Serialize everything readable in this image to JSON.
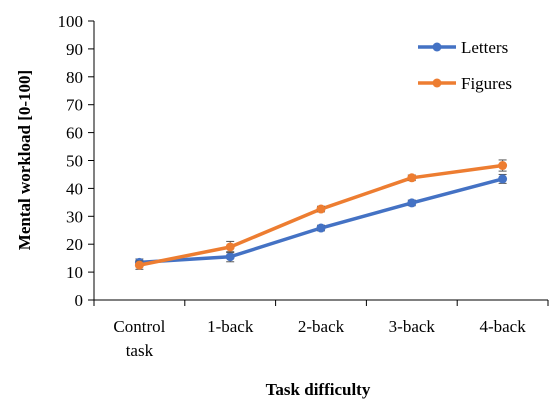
{
  "chart_data": {
    "type": "line",
    "xlabel": "Task difficulty",
    "ylabel": "Mental workload  [0-100]",
    "ylim": [
      0,
      100
    ],
    "yticks": [
      0,
      10,
      20,
      30,
      40,
      50,
      60,
      70,
      80,
      90,
      100
    ],
    "categories": [
      [
        "Control",
        "task"
      ],
      [
        "1-back"
      ],
      [
        "2-back"
      ],
      [
        "3-back"
      ],
      [
        "4-back"
      ]
    ],
    "grid": false,
    "legend_position": "top-right",
    "series": [
      {
        "name": "Letters",
        "color": "#4472C4",
        "values": [
          13.5,
          15.5,
          25.8,
          34.8,
          43.4
        ],
        "errors": [
          1.2,
          1.8,
          1.0,
          1.0,
          1.6
        ]
      },
      {
        "name": "Figures",
        "color": "#ED7D31",
        "values": [
          12.5,
          19.0,
          32.6,
          43.8,
          48.2
        ],
        "errors": [
          1.5,
          2.0,
          1.0,
          1.0,
          2.0
        ]
      }
    ]
  }
}
